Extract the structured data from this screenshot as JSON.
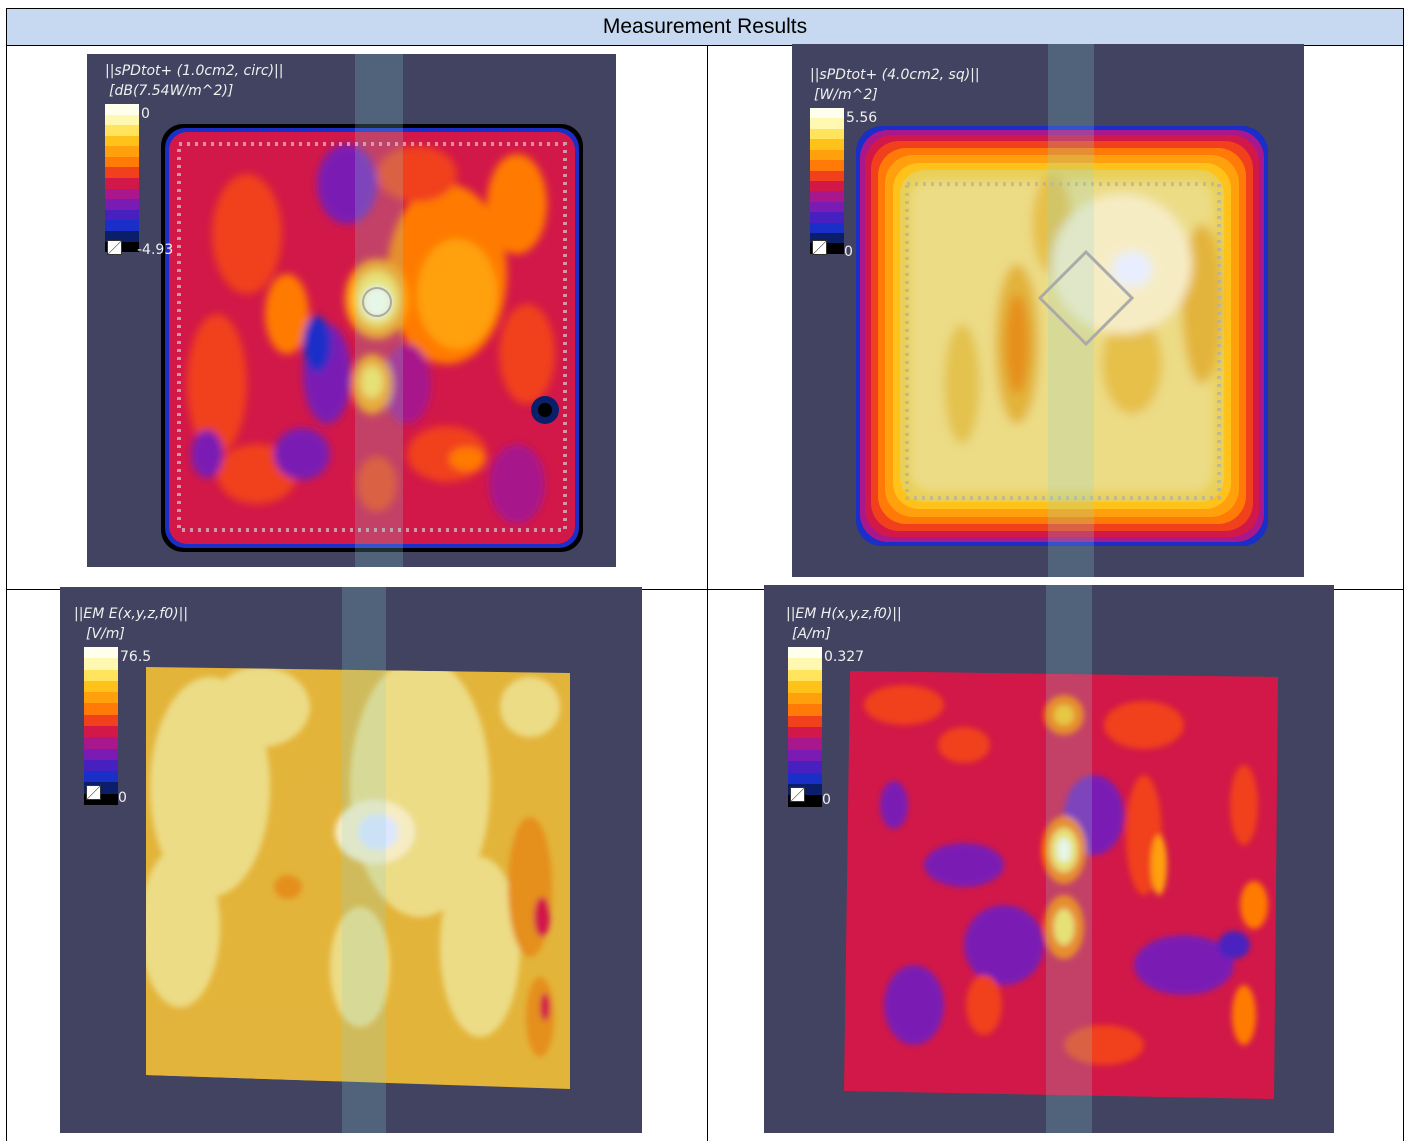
{
  "table": {
    "header": "Measurement Results"
  },
  "panels": {
    "p1": {
      "title": "||sPDtot+ (1.0cm2, circ)||",
      "unit": "[dB(7.54W/m^2)]",
      "max": "0",
      "min": "-4.93"
    },
    "p2": {
      "title": "||sPDtot+ (4.0cm2, sq)||",
      "unit": "[W/m^2]",
      "max": "5.56",
      "min": "0"
    },
    "p3": {
      "title": "||EM E(x,y,z,f0)||",
      "unit": "[V/m]",
      "max": "76.5",
      "min": "0"
    },
    "p4": {
      "title": "||EM H(x,y,z,f0)||",
      "unit": "[A/m]",
      "max": "0.327",
      "min": "0"
    }
  },
  "colors": {
    "panel_background": "#414360",
    "header_background": "#c6d9f1",
    "colormap": [
      "#ffffee",
      "#fff8b0",
      "#ffe45c",
      "#ffc21a",
      "#ffa00c",
      "#ff7a06",
      "#f0401c",
      "#d21848",
      "#a8188c",
      "#7a1cb4",
      "#4820c0",
      "#1a2ec8",
      "#0a1e6a",
      "#000000"
    ]
  }
}
